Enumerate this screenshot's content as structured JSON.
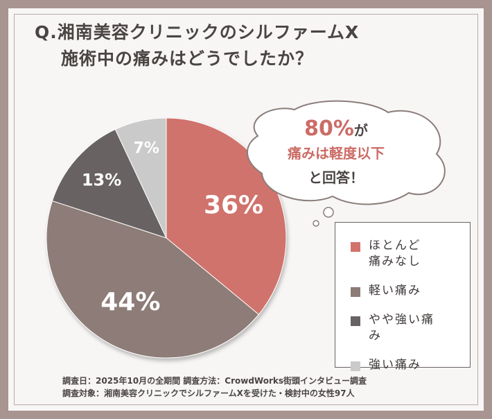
{
  "title": {
    "line1": "Q.湘南美容クリニックのシルファームX",
    "line2": "施術中の痛みはどうでしたか？"
  },
  "callout": {
    "pct": "80%",
    "ga": "が",
    "line2": "痛みは軽度以下",
    "line3": "と回答！"
  },
  "footer": {
    "line1": "調査日：2025年10月の全期間 調査方法：CrowdWorks街頭インタビュー調査",
    "line2": "調査対象：湘南美容クリニックでシルファームXを受けた・検討中の女性97人"
  },
  "colors": {
    "slice1": "#d0736c",
    "slice2": "#8d7b77",
    "slice3": "#676263",
    "slice4": "#cbcaca"
  },
  "chart_data": {
    "type": "pie",
    "categories": [
      "ほとんど痛みなし",
      "軽い痛み",
      "やや強い痛み",
      "強い痛み"
    ],
    "values": [
      36,
      44,
      13,
      7
    ],
    "labels": [
      "36%",
      "44%",
      "13%",
      "7%"
    ],
    "legend": "right"
  }
}
